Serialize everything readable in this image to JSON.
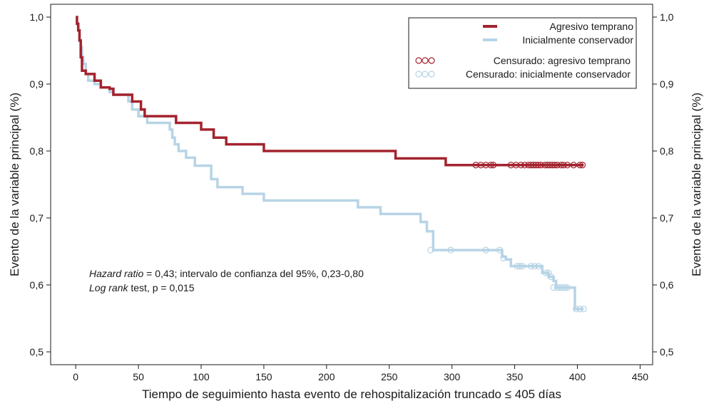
{
  "chart_data": {
    "type": "line",
    "subtype": "kaplan-meier step",
    "xlabel": "Tiempo de seguimiento hasta evento de rehospitalización truncado ≤ 405 días",
    "ylabel": "Evento de la variable principal (%)",
    "ylabel_right": "Evento de la variable principal (%)",
    "xlim": [
      -20,
      460
    ],
    "ylim": [
      0.5,
      1.0
    ],
    "x_ticks": [
      0,
      50,
      100,
      150,
      200,
      250,
      300,
      350,
      400,
      450
    ],
    "x_tick_labels": [
      "0",
      "50",
      "100",
      "150",
      "200",
      "250",
      "300",
      "350",
      "400",
      "450"
    ],
    "y_ticks": [
      0.5,
      0.6,
      0.7,
      0.8,
      0.9,
      1.0
    ],
    "y_tick_labels": [
      "0,5",
      "0,6",
      "0,7",
      "0,8",
      "0,9",
      "1,0"
    ],
    "grid": false,
    "legend_position": "top-right",
    "series": [
      {
        "name": "Agresivo temprano",
        "color": "#a3232f",
        "style": "step",
        "x": [
          0,
          1,
          2,
          3,
          4,
          5,
          8,
          15,
          20,
          27,
          30,
          45,
          52,
          55,
          60,
          75,
          80,
          100,
          110,
          120,
          150,
          200,
          255,
          260,
          295,
          300,
          405
        ],
        "y": [
          1.0,
          0.99,
          0.98,
          0.965,
          0.94,
          0.92,
          0.915,
          0.905,
          0.895,
          0.893,
          0.884,
          0.874,
          0.862,
          0.852,
          0.852,
          0.852,
          0.842,
          0.832,
          0.82,
          0.81,
          0.8,
          0.8,
          0.789,
          0.789,
          0.779,
          0.779,
          0.779
        ]
      },
      {
        "name": "Inicialmente conservador",
        "color": "#b7d4e6",
        "style": "step",
        "x": [
          0,
          1,
          2,
          3,
          4,
          5,
          6,
          8,
          10,
          15,
          20,
          27,
          30,
          42,
          45,
          50,
          57,
          75,
          77,
          79,
          82,
          88,
          95,
          108,
          113,
          133,
          150,
          200,
          225,
          243,
          275,
          280,
          285,
          300,
          340,
          343,
          347,
          365,
          372,
          377,
          381,
          383,
          392,
          398,
          405
        ],
        "y": [
          1.0,
          0.99,
          0.98,
          0.965,
          0.955,
          0.94,
          0.93,
          0.915,
          0.905,
          0.9,
          0.895,
          0.888,
          0.884,
          0.874,
          0.862,
          0.852,
          0.842,
          0.832,
          0.82,
          0.81,
          0.8,
          0.79,
          0.778,
          0.758,
          0.746,
          0.736,
          0.726,
          0.726,
          0.716,
          0.706,
          0.694,
          0.68,
          0.652,
          0.652,
          0.642,
          0.638,
          0.628,
          0.628,
          0.618,
          0.612,
          0.606,
          0.596,
          0.596,
          0.564,
          0.564
        ]
      }
    ],
    "censored": [
      {
        "name": "Censurado: agresivo temprano",
        "color": "#a3232f",
        "y": 0.779,
        "x": [
          319,
          323,
          327,
          331,
          333,
          347,
          351,
          355,
          358,
          361,
          363,
          365,
          367,
          369,
          371,
          374,
          376,
          378,
          380,
          382,
          384,
          387,
          389,
          392,
          397,
          402,
          404
        ]
      },
      {
        "name": "Censurado: inicialmente conservador",
        "color": "#b7d4e6",
        "points": [
          [
            283,
            0.652
          ],
          [
            299,
            0.652
          ],
          [
            327,
            0.652
          ],
          [
            338,
            0.652
          ],
          [
            341,
            0.64
          ],
          [
            352,
            0.628
          ],
          [
            354,
            0.628
          ],
          [
            356,
            0.628
          ],
          [
            363,
            0.628
          ],
          [
            366,
            0.628
          ],
          [
            369,
            0.628
          ],
          [
            375,
            0.618
          ],
          [
            377,
            0.618
          ],
          [
            379,
            0.612
          ],
          [
            381,
            0.596
          ],
          [
            384,
            0.596
          ],
          [
            386,
            0.596
          ],
          [
            388,
            0.596
          ],
          [
            390,
            0.596
          ],
          [
            392,
            0.596
          ],
          [
            399,
            0.564
          ],
          [
            402,
            0.564
          ],
          [
            405,
            0.564
          ]
        ]
      }
    ],
    "legend": {
      "entries": [
        {
          "label": "Agresivo temprano",
          "symbol": "line",
          "color": "#a3232f"
        },
        {
          "label": "Inicialmente conservador",
          "symbol": "line",
          "color": "#b7d4e6"
        },
        {
          "label": "Censurado: agresivo temprano",
          "symbol": "circles",
          "color": "#a3232f"
        },
        {
          "label": "Censurado: inicialmente conservador",
          "symbol": "circles",
          "color": "#b7d4e6"
        }
      ]
    },
    "annotations": {
      "line1_italic": "Hazard ratio",
      "line1_rest": " = 0,43; intervalo de confianza del 95%, 0,23-0,80",
      "line2_italic": "Log rank",
      "line2_rest": " test, p = 0,015"
    }
  }
}
